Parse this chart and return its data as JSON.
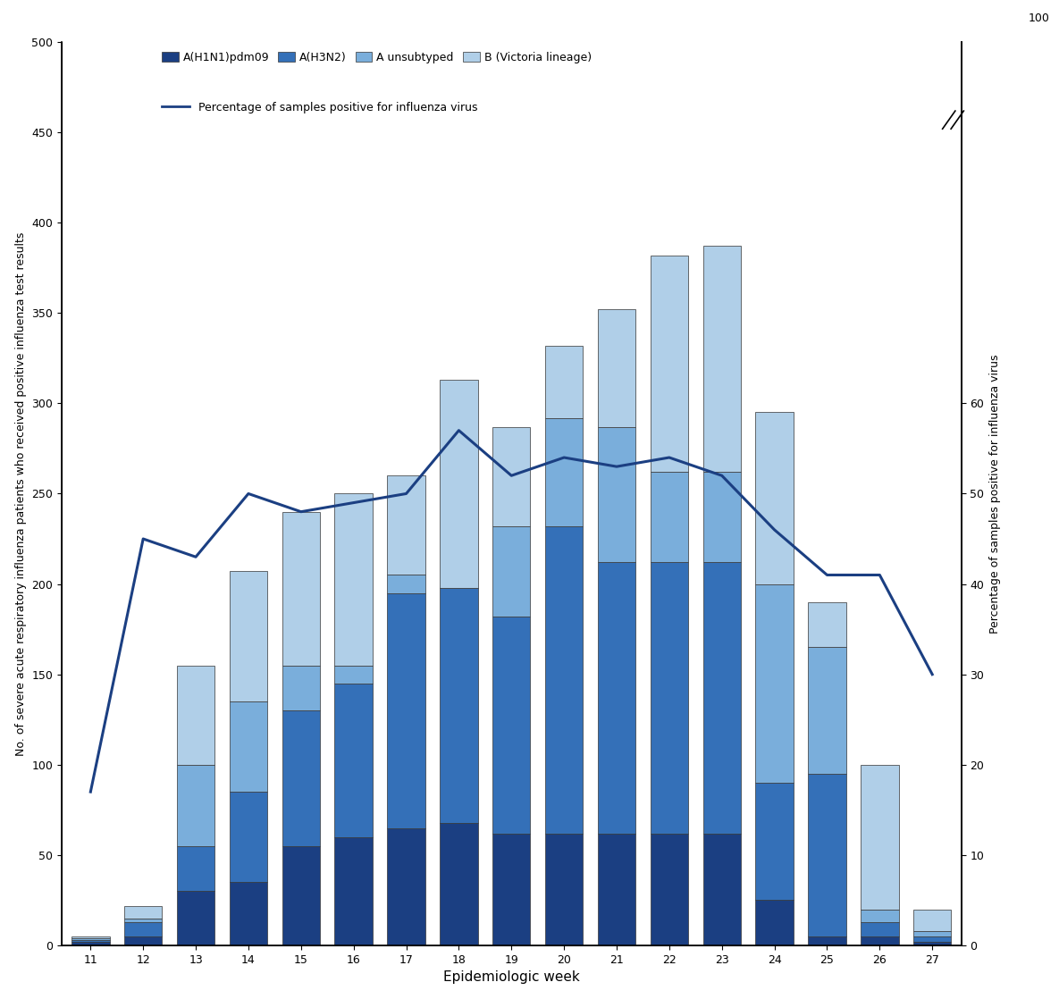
{
  "weeks": [
    11,
    12,
    13,
    14,
    15,
    16,
    17,
    18,
    19,
    20,
    21,
    22,
    23,
    24,
    25,
    26,
    27
  ],
  "h1n1": [
    2,
    5,
    30,
    35,
    55,
    60,
    65,
    68,
    62,
    62,
    62,
    62,
    62,
    25,
    5,
    5,
    2
  ],
  "h3n2": [
    1,
    8,
    25,
    50,
    75,
    85,
    130,
    130,
    120,
    170,
    150,
    150,
    150,
    65,
    90,
    8,
    3
  ],
  "a_unsub": [
    1,
    2,
    45,
    50,
    25,
    10,
    10,
    0,
    50,
    60,
    75,
    50,
    50,
    110,
    70,
    7,
    3
  ],
  "b_vict": [
    1,
    7,
    55,
    72,
    85,
    95,
    55,
    115,
    55,
    40,
    65,
    120,
    125,
    95,
    25,
    80,
    12
  ],
  "pct": [
    17,
    45,
    43,
    50,
    48,
    49,
    50,
    57,
    52,
    54,
    53,
    54,
    52,
    46,
    41,
    41,
    30
  ],
  "colors": {
    "h1n1": "#1b3f82",
    "h3n2": "#3470b8",
    "a_unsub": "#7aaedb",
    "b_vict": "#b0cfe8",
    "line": "#1b3f82"
  },
  "ylabel_left": "No. of severe acute respiratory influenza patients who received positive influenza test results",
  "ylabel_right": "Percentage of samples positive for influenza virus",
  "xlabel": "Epidemiologic week",
  "ylim_left": [
    0,
    500
  ],
  "ylim_right": [
    0,
    100
  ],
  "yticks_left": [
    0,
    50,
    100,
    150,
    200,
    250,
    300,
    350,
    400,
    450,
    500
  ],
  "yticks_right_show": [
    0,
    10,
    20,
    30,
    40,
    50,
    60
  ],
  "legend_labels": [
    "A(H1N1)pdm09",
    "A(H3N2)",
    "A unsubtyped",
    "B (Victoria lineage)",
    "Percentage of samples positive for influenza virus"
  ],
  "axis_fontsize": 9,
  "tick_fontsize": 9
}
